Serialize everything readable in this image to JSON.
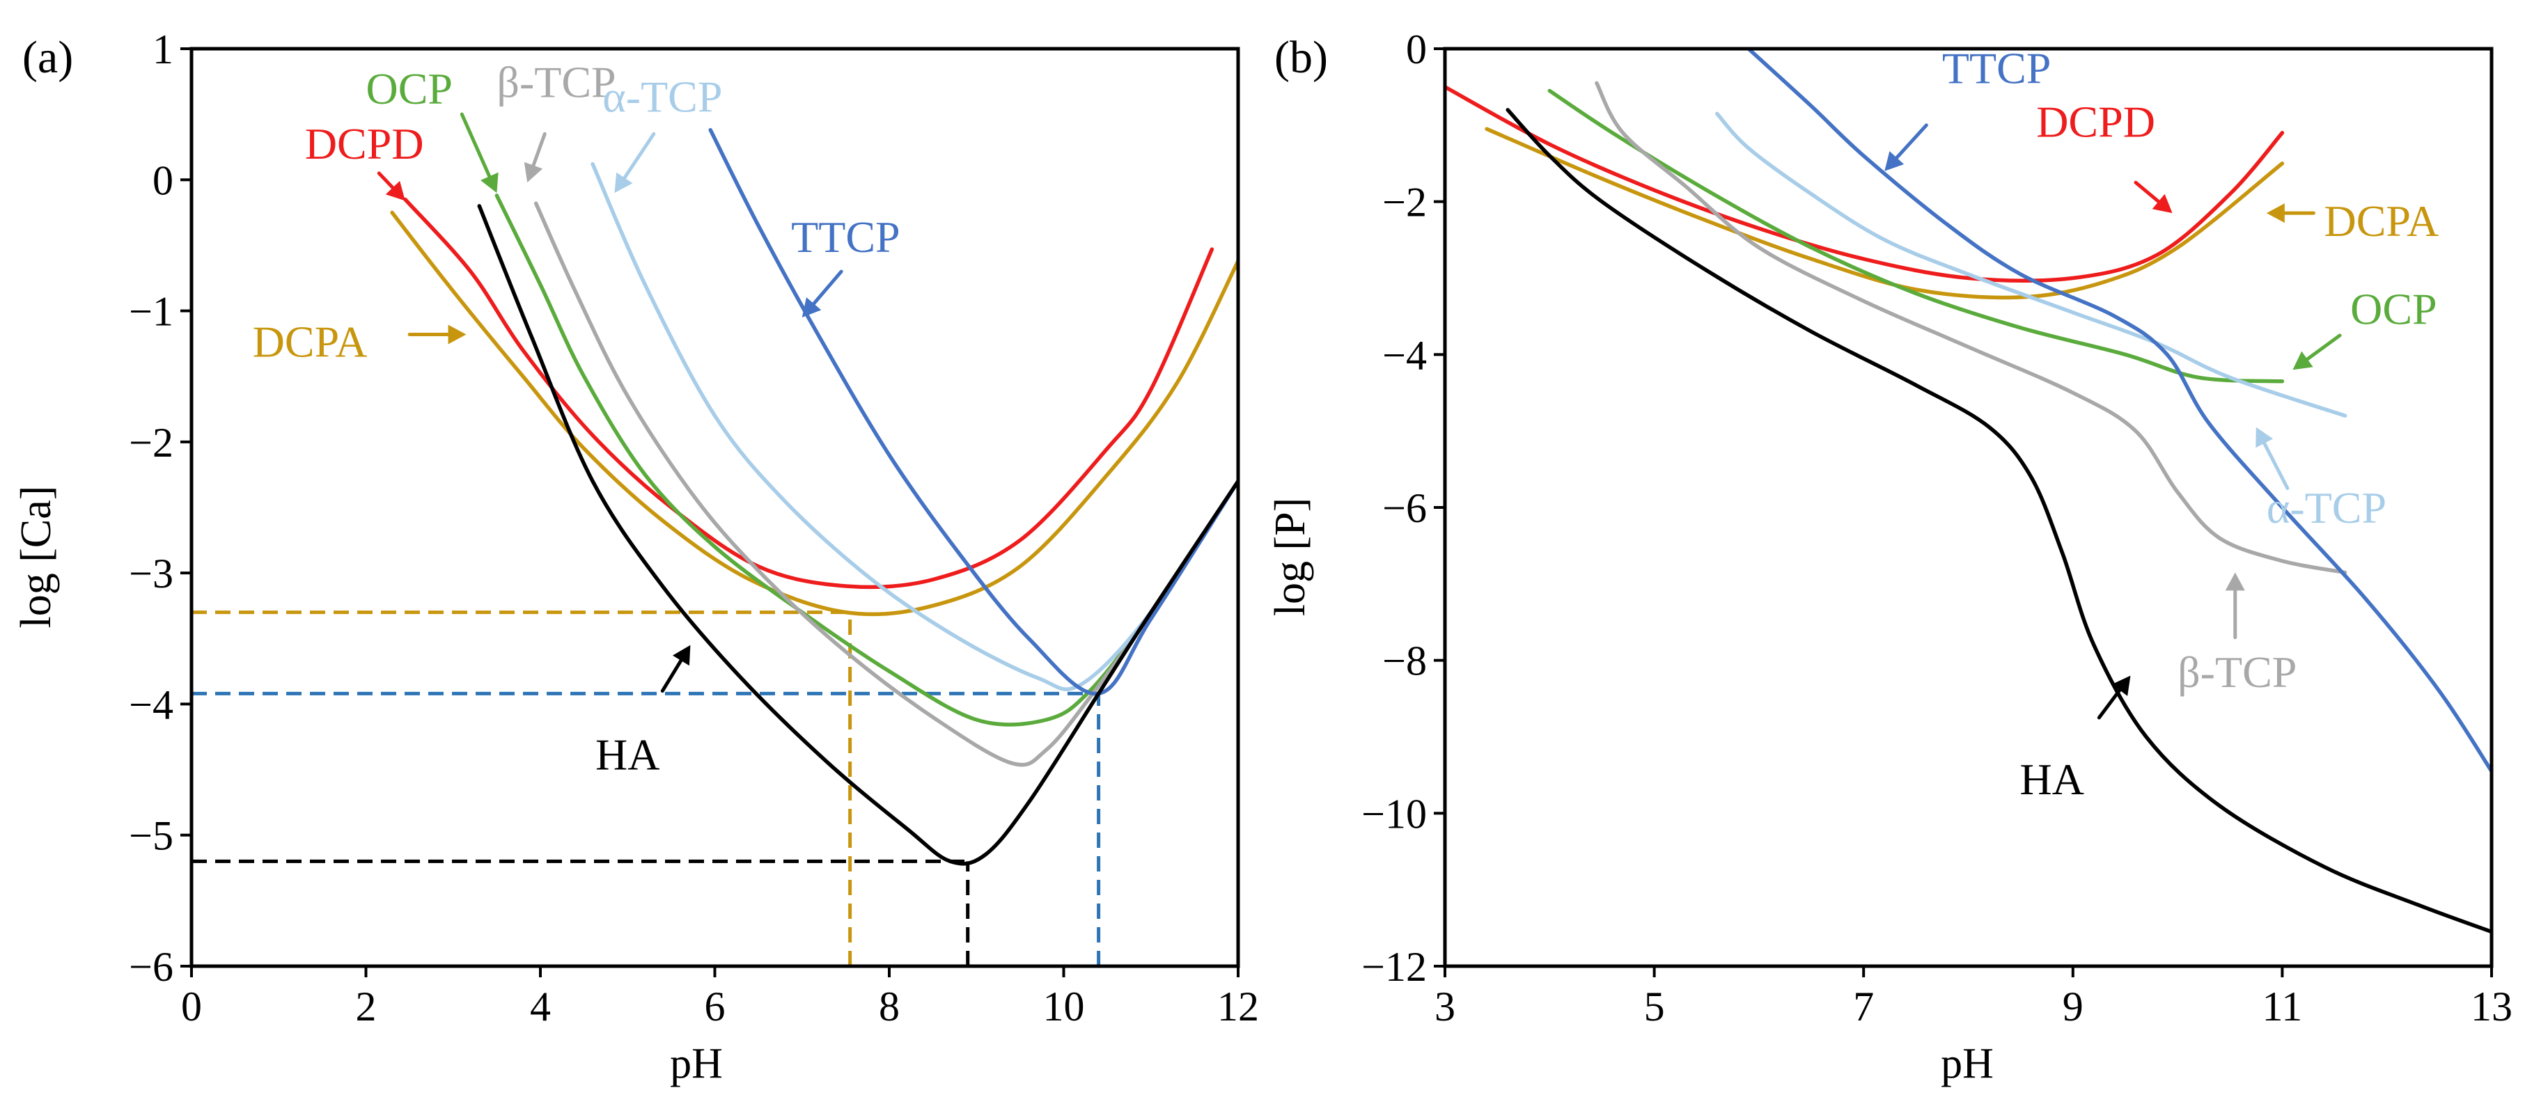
{
  "chart_data": [
    {
      "type": "line",
      "panel_label": "(a)",
      "xlabel": "pH",
      "ylabel": "log [Ca]",
      "xlim": [
        0,
        12
      ],
      "ylim": [
        -6,
        1
      ],
      "xticks": [
        0,
        2,
        4,
        6,
        8,
        10,
        12
      ],
      "yticks": [
        -6,
        -5,
        -4,
        -3,
        -2,
        -1,
        0,
        1
      ],
      "xtick_labels": [
        "0",
        "2",
        "4",
        "6",
        "8",
        "10",
        "12"
      ],
      "ytick_labels": [
        "−6",
        "−5",
        "−4",
        "−3",
        "−2",
        "−1",
        "0",
        "1"
      ],
      "series": [
        {
          "name": "DCPD",
          "color": "#ee1c1c",
          "points": [
            [
              2.45,
              -0.15
            ],
            [
              3.2,
              -0.7
            ],
            [
              3.8,
              -1.3
            ],
            [
              4.6,
              -1.95
            ],
            [
              5.5,
              -2.5
            ],
            [
              6.5,
              -2.95
            ],
            [
              7.5,
              -3.1
            ],
            [
              8.5,
              -3.05
            ],
            [
              9.5,
              -2.75
            ],
            [
              10.5,
              -2.05
            ],
            [
              11.0,
              -1.6
            ],
            [
              11.7,
              -0.53
            ]
          ]
        },
        {
          "name": "DCPA",
          "color": "#c8960e",
          "points": [
            [
              2.3,
              -0.25
            ],
            [
              3.0,
              -0.85
            ],
            [
              3.8,
              -1.5
            ],
            [
              4.5,
              -2.05
            ],
            [
              5.4,
              -2.6
            ],
            [
              6.4,
              -3.05
            ],
            [
              7.5,
              -3.3
            ],
            [
              8.5,
              -3.25
            ],
            [
              9.5,
              -2.95
            ],
            [
              10.5,
              -2.25
            ],
            [
              11.3,
              -1.55
            ],
            [
              12.0,
              -0.62
            ]
          ]
        },
        {
          "name": "OCP",
          "color": "#5aab3c",
          "points": [
            [
              3.5,
              -0.12
            ],
            [
              4.0,
              -0.8
            ],
            [
              4.5,
              -1.5
            ],
            [
              5.2,
              -2.25
            ],
            [
              6.0,
              -2.8
            ],
            [
              7.0,
              -3.3
            ],
            [
              8.0,
              -3.75
            ],
            [
              9.0,
              -4.12
            ],
            [
              9.8,
              -4.12
            ],
            [
              10.3,
              -3.9
            ],
            [
              11.0,
              -3.3
            ],
            [
              12.0,
              -2.3
            ]
          ]
        },
        {
          "name": "β-TCP",
          "color": "#a8a8a8",
          "points": [
            [
              3.95,
              -0.18
            ],
            [
              4.4,
              -0.85
            ],
            [
              5.0,
              -1.65
            ],
            [
              5.8,
              -2.45
            ],
            [
              6.6,
              -3.05
            ],
            [
              7.5,
              -3.6
            ],
            [
              8.5,
              -4.1
            ],
            [
              9.4,
              -4.45
            ],
            [
              9.8,
              -4.35
            ],
            [
              10.3,
              -3.95
            ],
            [
              11.0,
              -3.3
            ],
            [
              12.0,
              -2.3
            ]
          ]
        },
        {
          "name": "α-TCP",
          "color": "#a8cde9",
          "points": [
            [
              4.6,
              0.12
            ],
            [
              5.2,
              -0.8
            ],
            [
              6.0,
              -1.8
            ],
            [
              6.8,
              -2.45
            ],
            [
              7.8,
              -3.05
            ],
            [
              8.8,
              -3.5
            ],
            [
              9.7,
              -3.8
            ],
            [
              10.2,
              -3.85
            ],
            [
              11.0,
              -3.3
            ],
            [
              12.0,
              -2.3
            ]
          ]
        },
        {
          "name": "TTCP",
          "color": "#4472c4",
          "points": [
            [
              5.95,
              0.38
            ],
            [
              6.5,
              -0.35
            ],
            [
              7.2,
              -1.2
            ],
            [
              8.0,
              -2.1
            ],
            [
              8.8,
              -2.85
            ],
            [
              9.6,
              -3.5
            ],
            [
              10.4,
              -3.92
            ],
            [
              11.0,
              -3.35
            ],
            [
              12.0,
              -2.3
            ]
          ]
        },
        {
          "name": "HA",
          "color": "#000000",
          "points": [
            [
              3.3,
              -0.2
            ],
            [
              3.9,
              -1.2
            ],
            [
              4.6,
              -2.3
            ],
            [
              5.4,
              -3.1
            ],
            [
              6.3,
              -3.8
            ],
            [
              7.3,
              -4.45
            ],
            [
              8.2,
              -4.95
            ],
            [
              8.7,
              -5.2
            ],
            [
              9.1,
              -5.15
            ],
            [
              9.6,
              -4.75
            ],
            [
              10.4,
              -3.92
            ],
            [
              11.0,
              -3.3
            ],
            [
              12.0,
              -2.3
            ]
          ]
        }
      ],
      "reference_lines": [
        {
          "color": "#c8960e",
          "h_y": -3.3,
          "h_x": [
            0,
            7.55
          ],
          "v_x": 7.55,
          "v_y": [
            -6,
            -3.3
          ]
        },
        {
          "color": "#2e75b6",
          "h_y": -3.92,
          "h_x": [
            0,
            10.4
          ],
          "v_x": 10.4,
          "v_y": [
            -6,
            -3.92
          ]
        },
        {
          "color": "#000000",
          "h_y": -5.2,
          "h_x": [
            0,
            8.9
          ],
          "v_x": 8.9,
          "v_y": [
            -6,
            -5.2
          ]
        }
      ],
      "annotations": [
        {
          "text": "DCPD",
          "color": "#ee1c1c",
          "x": 1.3,
          "y": 0.16,
          "anchor": "start",
          "arrow": [
            [
              2.15,
              0.05
            ],
            [
              2.45,
              -0.16
            ]
          ]
        },
        {
          "text": "DCPA",
          "color": "#c8960e",
          "x": 0.7,
          "y": -1.35,
          "anchor": "start",
          "arrow": [
            [
              2.5,
              -1.18
            ],
            [
              3.15,
              -1.18
            ]
          ]
        },
        {
          "text": "OCP",
          "color": "#5aab3c",
          "x": 2.0,
          "y": 0.58,
          "anchor": "start",
          "arrow": [
            [
              3.1,
              0.5
            ],
            [
              3.5,
              -0.1
            ]
          ]
        },
        {
          "text": "β-TCP",
          "color": "#a8a8a8",
          "x": 3.5,
          "y": 0.63,
          "anchor": "start",
          "arrow": [
            [
              4.05,
              0.35
            ],
            [
              3.85,
              -0.02
            ]
          ]
        },
        {
          "text": "α-TCP",
          "color": "#a8cde9",
          "x": 5.4,
          "y": 0.52,
          "anchor": "middle",
          "arrow": [
            [
              5.3,
              0.35
            ],
            [
              4.85,
              -0.1
            ]
          ]
        },
        {
          "text": "TTCP",
          "color": "#4472c4",
          "x": 7.5,
          "y": -0.55,
          "anchor": "middle",
          "arrow": [
            [
              7.45,
              -0.7
            ],
            [
              7.0,
              -1.05
            ]
          ]
        },
        {
          "text": "HA",
          "color": "#000000",
          "x": 5.0,
          "y": -4.5,
          "anchor": "middle",
          "arrow": [
            [
              5.4,
              -3.9
            ],
            [
              5.72,
              -3.55
            ]
          ]
        }
      ]
    },
    {
      "type": "line",
      "panel_label": "(b)",
      "xlabel": "pH",
      "ylabel": "log [P]",
      "xlim": [
        3,
        13
      ],
      "ylim": [
        -12,
        0
      ],
      "xticks": [
        3,
        5,
        7,
        9,
        11,
        13
      ],
      "yticks": [
        -12,
        -10,
        -8,
        -6,
        -4,
        -2,
        0
      ],
      "xtick_labels": [
        "3",
        "5",
        "7",
        "9",
        "11",
        "13"
      ],
      "ytick_labels": [
        "−12",
        "−10",
        "−8",
        "−6",
        "−4",
        "−2",
        "0"
      ],
      "series": [
        {
          "name": "DCPD",
          "color": "#ee1c1c",
          "points": [
            [
              3.0,
              -0.5
            ],
            [
              4.0,
              -1.25
            ],
            [
              5.0,
              -1.85
            ],
            [
              6.0,
              -2.35
            ],
            [
              7.0,
              -2.75
            ],
            [
              8.0,
              -3.0
            ],
            [
              9.0,
              -3.0
            ],
            [
              9.8,
              -2.7
            ],
            [
              10.5,
              -1.9
            ],
            [
              11.0,
              -1.1
            ]
          ]
        },
        {
          "name": "DCPA",
          "color": "#c8960e",
          "points": [
            [
              3.4,
              -1.05
            ],
            [
              4.5,
              -1.7
            ],
            [
              5.5,
              -2.25
            ],
            [
              6.5,
              -2.75
            ],
            [
              7.5,
              -3.15
            ],
            [
              8.5,
              -3.25
            ],
            [
              9.3,
              -3.05
            ],
            [
              10.0,
              -2.6
            ],
            [
              11.0,
              -1.5
            ]
          ]
        },
        {
          "name": "OCP",
          "color": "#5aab3c",
          "points": [
            [
              4.0,
              -0.55
            ],
            [
              4.6,
              -1.1
            ],
            [
              5.5,
              -1.85
            ],
            [
              6.5,
              -2.6
            ],
            [
              7.5,
              -3.2
            ],
            [
              8.5,
              -3.65
            ],
            [
              9.5,
              -4.0
            ],
            [
              10.2,
              -4.3
            ],
            [
              11.0,
              -4.35
            ]
          ]
        },
        {
          "name": "β-TCP",
          "color": "#a8a8a8",
          "points": [
            [
              4.45,
              -0.45
            ],
            [
              4.7,
              -1.1
            ],
            [
              5.3,
              -1.8
            ],
            [
              6.0,
              -2.6
            ],
            [
              7.0,
              -3.3
            ],
            [
              8.0,
              -3.9
            ],
            [
              9.0,
              -4.5
            ],
            [
              9.6,
              -5.0
            ],
            [
              10.0,
              -5.8
            ],
            [
              10.4,
              -6.4
            ],
            [
              11.0,
              -6.7
            ],
            [
              11.6,
              -6.85
            ]
          ]
        },
        {
          "name": "α-TCP",
          "color": "#a8cde9",
          "points": [
            [
              5.6,
              -0.85
            ],
            [
              5.9,
              -1.3
            ],
            [
              6.5,
              -1.9
            ],
            [
              7.2,
              -2.5
            ],
            [
              8.0,
              -2.95
            ],
            [
              9.0,
              -3.45
            ],
            [
              9.8,
              -3.85
            ],
            [
              10.5,
              -4.3
            ],
            [
              11.6,
              -4.8
            ]
          ]
        },
        {
          "name": "TTCP",
          "color": "#4472c4",
          "points": [
            [
              5.9,
              0.0
            ],
            [
              6.5,
              -0.75
            ],
            [
              7.0,
              -1.4
            ],
            [
              7.8,
              -2.3
            ],
            [
              8.5,
              -2.95
            ],
            [
              9.4,
              -3.5
            ],
            [
              9.9,
              -4.0
            ],
            [
              10.3,
              -4.9
            ],
            [
              11.0,
              -6.0
            ],
            [
              11.8,
              -7.2
            ],
            [
              12.5,
              -8.4
            ],
            [
              13.0,
              -9.45
            ]
          ]
        },
        {
          "name": "HA",
          "color": "#000000",
          "points": [
            [
              3.6,
              -0.8
            ],
            [
              4.0,
              -1.4
            ],
            [
              4.5,
              -2.0
            ],
            [
              5.5,
              -2.9
            ],
            [
              6.5,
              -3.7
            ],
            [
              7.5,
              -4.4
            ],
            [
              8.2,
              -4.95
            ],
            [
              8.6,
              -5.6
            ],
            [
              8.9,
              -6.6
            ],
            [
              9.2,
              -7.8
            ],
            [
              9.7,
              -9.0
            ],
            [
              10.4,
              -9.9
            ],
            [
              11.4,
              -10.7
            ],
            [
              12.3,
              -11.2
            ],
            [
              13.0,
              -11.55
            ]
          ]
        }
      ],
      "annotations": [
        {
          "text": "TTCP",
          "color": "#4472c4",
          "x": 7.75,
          "y": -0.45,
          "anchor": "start",
          "arrow": [
            [
              7.6,
              -1.0
            ],
            [
              7.2,
              -1.6
            ]
          ]
        },
        {
          "text": "DCPD",
          "color": "#ee1c1c",
          "x": 8.65,
          "y": -1.15,
          "anchor": "start",
          "arrow": [
            [
              9.6,
              -1.75
            ],
            [
              9.95,
              -2.15
            ]
          ]
        },
        {
          "text": "DCPA",
          "color": "#c8960e",
          "x": 11.4,
          "y": -2.45,
          "anchor": "start",
          "arrow": [
            [
              11.3,
              -2.15
            ],
            [
              10.85,
              -2.15
            ]
          ]
        },
        {
          "text": "OCP",
          "color": "#5aab3c",
          "x": 11.65,
          "y": -3.6,
          "anchor": "start",
          "arrow": [
            [
              11.55,
              -3.75
            ],
            [
              11.1,
              -4.2
            ]
          ]
        },
        {
          "text": "α-TCP",
          "color": "#a8cde9",
          "x": 10.85,
          "y": -6.2,
          "anchor": "start",
          "arrow": [
            [
              11.05,
              -5.75
            ],
            [
              10.75,
              -4.95
            ]
          ]
        },
        {
          "text": "β-TCP",
          "color": "#a8a8a8",
          "x": 10.0,
          "y": -8.35,
          "anchor": "start",
          "arrow": [
            [
              10.55,
              -7.7
            ],
            [
              10.55,
              -6.85
            ]
          ]
        },
        {
          "text": "HA",
          "color": "#000000",
          "x": 8.8,
          "y": -9.75,
          "anchor": "middle",
          "arrow": [
            [
              9.25,
              -8.75
            ],
            [
              9.55,
              -8.2
            ]
          ]
        }
      ]
    }
  ]
}
